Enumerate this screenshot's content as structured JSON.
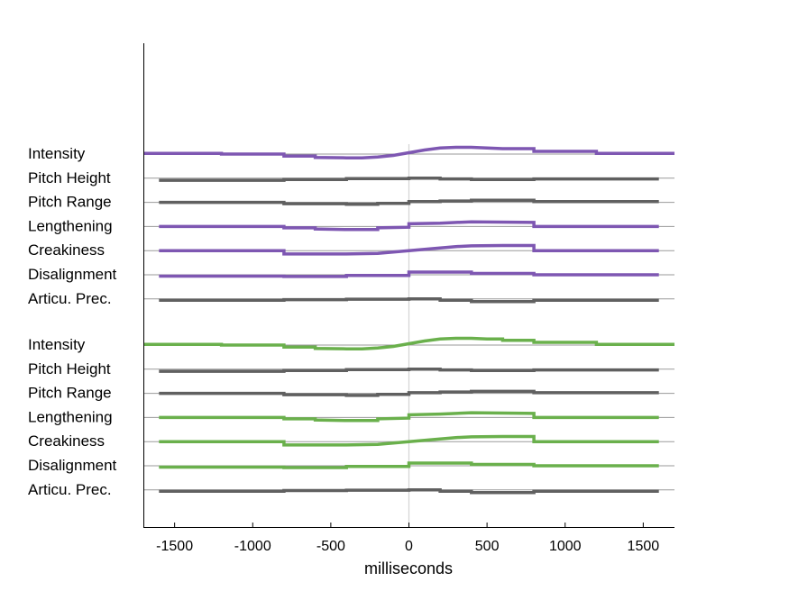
{
  "chart_data": {
    "type": "line",
    "xlabel": "milliseconds",
    "xlim": [
      -1700,
      1700
    ],
    "x_ticks": [
      -1500,
      -1000,
      -500,
      0,
      500,
      1000,
      1500
    ],
    "x_tick_labels": [
      "-1500",
      "-1000",
      "-500",
      "0",
      "500",
      "1000",
      "1500"
    ],
    "zero_line": true,
    "colors": {
      "purple": "#7e57b2",
      "green": "#6ab04c",
      "gray": "#606060",
      "baseline": "#9a9a9a",
      "zero": "#d4d4d4"
    },
    "groups": [
      {
        "color_key": "purple",
        "series": [
          {
            "name": "Intensity",
            "color_key": "purple",
            "x": [
              -1700,
              -1200,
              -1200,
              -800,
              -800,
              -600,
              -600,
              -400,
              -300,
              -200,
              -100,
              0,
              100,
              200,
              300,
              400,
              500,
              600,
              800,
              800,
              1200,
              1200,
              1700
            ],
            "y": [
              0.5,
              0.5,
              0.0,
              0.0,
              -1.5,
              -1.5,
              -2.5,
              -2.8,
              -2.8,
              -2.2,
              -1.0,
              1.0,
              3.0,
              4.5,
              5.0,
              5.0,
              4.5,
              4.0,
              4.0,
              2.0,
              2.0,
              0.5,
              0.5
            ]
          },
          {
            "name": "Pitch Height",
            "color_key": "gray",
            "x": [
              -1600,
              -800,
              -800,
              -400,
              -400,
              0,
              0,
              200,
              200,
              400,
              400,
              800,
              800,
              1600
            ],
            "y": [
              -1.5,
              -1.5,
              -1.0,
              -1.0,
              -0.3,
              -0.3,
              0,
              0,
              -0.5,
              -0.5,
              -1.0,
              -1.0,
              -0.5,
              -0.5
            ]
          },
          {
            "name": "Pitch Range",
            "color_key": "gray",
            "x": [
              -1600,
              -800,
              -800,
              -400,
              -400,
              -200,
              -200,
              0,
              0,
              200,
              200,
              400,
              400,
              800,
              800,
              1600
            ],
            "y": [
              0,
              0,
              -1.0,
              -1.0,
              -1.5,
              -1.5,
              -0.8,
              -0.8,
              0.5,
              0.5,
              1.0,
              1.0,
              1.5,
              1.5,
              0.5,
              0.5
            ]
          },
          {
            "name": "Lengthening",
            "color_key": "purple",
            "x": [
              -1600,
              -800,
              -800,
              -600,
              -600,
              -400,
              -200,
              -200,
              0,
              0,
              200,
              200,
              400,
              400,
              800,
              800,
              1600
            ],
            "y": [
              0,
              0,
              -1.0,
              -1.0,
              -1.8,
              -2.3,
              -2.3,
              -1.0,
              -0.5,
              2.0,
              2.5,
              2.5,
              3.5,
              3.5,
              3.0,
              0,
              0
            ]
          },
          {
            "name": "Creakiness",
            "color_key": "purple",
            "x": [
              -1600,
              -800,
              -800,
              -600,
              -400,
              -200,
              0,
              100,
              200,
              300,
              400,
              600,
              800,
              800,
              1600
            ],
            "y": [
              0,
              0,
              -2.5,
              -2.5,
              -2.5,
              -2.0,
              0,
              1.0,
              2.0,
              3.0,
              3.5,
              3.8,
              3.8,
              0,
              0
            ]
          },
          {
            "name": "Disalignment",
            "color_key": "purple",
            "x": [
              -1600,
              -800,
              -800,
              -400,
              -400,
              0,
              0,
              400,
              400,
              800,
              800,
              1600
            ],
            "y": [
              -1.0,
              -1.0,
              -1.3,
              -1.3,
              -0.5,
              -0.5,
              2.0,
              2.0,
              1.0,
              1.0,
              0,
              0
            ]
          },
          {
            "name": "Articu. Prec.",
            "color_key": "gray",
            "x": [
              -1600,
              -800,
              -800,
              -400,
              -400,
              0,
              0,
              200,
              200,
              400,
              400,
              800,
              800,
              1600
            ],
            "y": [
              -1.0,
              -1.0,
              -0.5,
              -0.5,
              -0.2,
              -0.2,
              0,
              0,
              -1.0,
              -1.0,
              -2.0,
              -2.0,
              -1.0,
              -1.0
            ]
          }
        ]
      },
      {
        "color_key": "green",
        "series": [
          {
            "name": "Intensity",
            "color_key": "green",
            "x": [
              -1700,
              -1200,
              -1200,
              -800,
              -800,
              -600,
              -600,
              -400,
              -300,
              -200,
              -100,
              0,
              100,
              200,
              300,
              400,
              500,
              600,
              600,
              800,
              800,
              1200,
              1200,
              1700
            ],
            "y": [
              0.5,
              0.5,
              0.0,
              0.0,
              -1.5,
              -1.5,
              -2.5,
              -2.8,
              -2.8,
              -2.2,
              -1.0,
              1.0,
              3.0,
              4.5,
              5.0,
              5.0,
              4.5,
              4.5,
              3.5,
              3.5,
              2.0,
              2.0,
              0.5,
              0.5
            ]
          },
          {
            "name": "Pitch Height",
            "color_key": "gray",
            "x": [
              -1600,
              -800,
              -800,
              -400,
              -400,
              0,
              0,
              200,
              200,
              400,
              400,
              800,
              800,
              1600
            ],
            "y": [
              -1.5,
              -1.5,
              -1.0,
              -1.0,
              -0.3,
              -0.3,
              0,
              0,
              -0.5,
              -0.5,
              -1.0,
              -1.0,
              -0.5,
              -0.5
            ]
          },
          {
            "name": "Pitch Range",
            "color_key": "gray",
            "x": [
              -1600,
              -800,
              -800,
              -400,
              -400,
              -200,
              -200,
              0,
              0,
              200,
              200,
              400,
              400,
              800,
              800,
              1600
            ],
            "y": [
              0,
              0,
              -1.0,
              -1.0,
              -1.5,
              -1.5,
              -0.8,
              -0.8,
              0.5,
              0.5,
              1.0,
              1.0,
              1.5,
              1.5,
              0.5,
              0.5
            ]
          },
          {
            "name": "Lengthening",
            "color_key": "green",
            "x": [
              -1600,
              -800,
              -800,
              -600,
              -600,
              -400,
              -200,
              -200,
              0,
              0,
              200,
              200,
              400,
              400,
              800,
              800,
              1600
            ],
            "y": [
              0,
              0,
              -1.0,
              -1.0,
              -1.8,
              -2.3,
              -2.3,
              -1.0,
              -0.5,
              2.0,
              2.5,
              2.5,
              3.5,
              3.5,
              3.0,
              0,
              0
            ]
          },
          {
            "name": "Creakiness",
            "color_key": "green",
            "x": [
              -1600,
              -800,
              -800,
              -600,
              -400,
              -200,
              0,
              100,
              200,
              300,
              400,
              600,
              800,
              800,
              1600
            ],
            "y": [
              0,
              0,
              -2.5,
              -2.5,
              -2.5,
              -2.0,
              0,
              1.0,
              2.0,
              3.0,
              3.5,
              3.8,
              3.8,
              0,
              0
            ]
          },
          {
            "name": "Disalignment",
            "color_key": "green",
            "x": [
              -1600,
              -800,
              -800,
              -400,
              -400,
              0,
              0,
              400,
              400,
              800,
              800,
              1600
            ],
            "y": [
              -1.0,
              -1.0,
              -1.3,
              -1.3,
              -0.5,
              -0.5,
              2.0,
              2.0,
              1.0,
              1.0,
              0,
              0
            ]
          },
          {
            "name": "Articu. Prec.",
            "color_key": "gray",
            "x": [
              -1600,
              -800,
              -800,
              -400,
              -400,
              0,
              0,
              200,
              200,
              400,
              400,
              800,
              800,
              1600
            ],
            "y": [
              -1.0,
              -1.0,
              -0.5,
              -0.5,
              -0.2,
              -0.2,
              0,
              0,
              -1.0,
              -1.0,
              -2.0,
              -2.0,
              -1.0,
              -1.0
            ]
          }
        ]
      }
    ]
  }
}
